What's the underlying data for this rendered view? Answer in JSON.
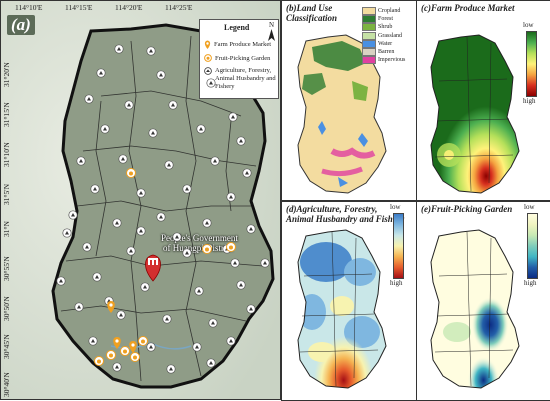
{
  "panel_a": {
    "label": "(a)",
    "lon_ticks": [
      "114°10'E",
      "114°15'E",
      "114°20'E",
      "114°25'E",
      "114°30'E",
      "114°35'E"
    ],
    "lat_ticks": [
      "31°20'N",
      "31°15'N",
      "31°10'N",
      "31°5'N",
      "31°N",
      "30°55'N",
      "30°50'N",
      "30°45'N",
      "30°40'N"
    ],
    "lat_ticks_bottom": [
      "114°10'E",
      "114°15'E",
      "114°20'E",
      "114°25'E",
      "114°30'E",
      "114°35'E"
    ],
    "government_label_1": "People's Government",
    "government_label_2": "of Huangpi District",
    "legend": {
      "title": "Legend",
      "north": "N",
      "items": [
        {
          "label": "Farm Produce Market",
          "icon": "pin-icon",
          "color": "#f0a020"
        },
        {
          "label": "Fruit-Picking Garden",
          "icon": "fruit-icon",
          "color": "#f0a020"
        },
        {
          "label": "Agriculture, Forestry, Animal Husbandry and Fishery",
          "icon": "farm-icon",
          "color": "#333333"
        }
      ]
    }
  },
  "panel_b": {
    "title_1": "(b)Land Use",
    "title_2": "Classification",
    "classes": [
      {
        "label": "Cropland",
        "color": "#f3dca0"
      },
      {
        "label": "Forest",
        "color": "#2e7d32"
      },
      {
        "label": "Shrub",
        "color": "#7cb342"
      },
      {
        "label": "Grassland",
        "color": "#c5e1a5"
      },
      {
        "label": "Water",
        "color": "#4a90e2"
      },
      {
        "label": "Barren",
        "color": "#d9d2c2"
      },
      {
        "label": "Impervious",
        "color": "#e040a0"
      }
    ]
  },
  "panel_c": {
    "title": "(c)Farm Produce Market",
    "low": "low",
    "high": "high",
    "colors": [
      "#1b6b1b",
      "#4caf50",
      "#b5e05a",
      "#fff27a",
      "#f4a340",
      "#d7301f",
      "#8b0000"
    ]
  },
  "panel_d": {
    "title_1": "(d)Agriculture, Forestry,",
    "title_2": "Animal Husbandry and Fishery",
    "low": "low",
    "high": "high",
    "colors": [
      "#3a7cc8",
      "#7fb7e0",
      "#c9e7e8",
      "#f7f3b0",
      "#f5b351",
      "#e65c2c",
      "#a50f15"
    ]
  },
  "panel_e": {
    "title": "(e)Fruit-Picking Garden",
    "low": "low",
    "high": "high",
    "colors": [
      "#fffde0",
      "#f0f4c0",
      "#c7e9b4",
      "#7fcdbb",
      "#41b6c4",
      "#225ea8",
      "#0c2c84"
    ]
  }
}
